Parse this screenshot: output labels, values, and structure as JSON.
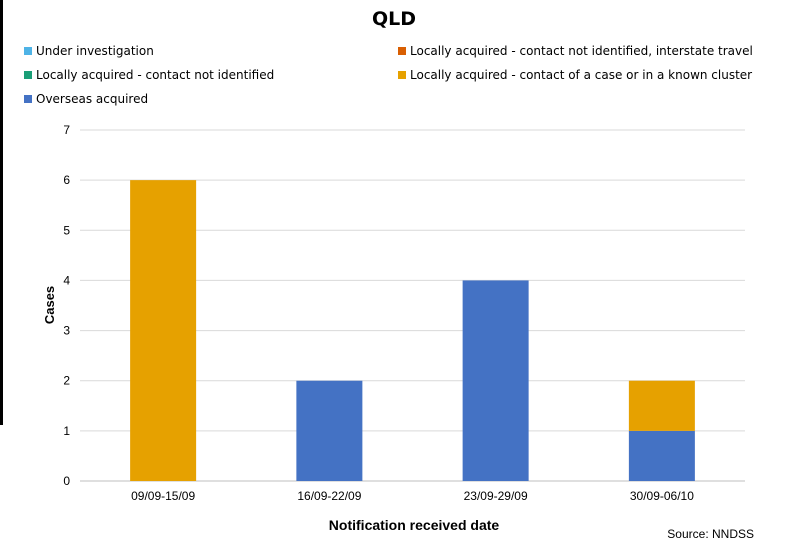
{
  "chart_data": {
    "type": "bar",
    "stacked": true,
    "title": "QLD",
    "xlabel": "Notification received date",
    "ylabel": "Cases",
    "ylim": [
      0,
      7
    ],
    "yticks": [
      0,
      1,
      2,
      3,
      4,
      5,
      6,
      7
    ],
    "grid": true,
    "legend_position": "top",
    "categories": [
      "09/09-15/09",
      "16/09-22/09",
      "23/09-29/09",
      "30/09-06/10"
    ],
    "series": [
      {
        "name": "Overseas acquired",
        "color": "#4472c4",
        "values": [
          0,
          2,
          4,
          1
        ]
      },
      {
        "name": "Locally acquired - contact of a case or in a known cluster",
        "color": "#e6a100",
        "values": [
          6,
          0,
          0,
          1
        ]
      },
      {
        "name": "Locally acquired - contact not identified",
        "color": "#1a9e77",
        "values": [
          0,
          0,
          0,
          0
        ]
      },
      {
        "name": "Locally acquired - contact not identified, interstate travel",
        "color": "#d95f02",
        "values": [
          0,
          0,
          0,
          0
        ]
      },
      {
        "name": "Under investigation",
        "color": "#4eb3e6",
        "values": [
          0,
          0,
          0,
          0
        ]
      }
    ],
    "source": "Source: NNDSS"
  },
  "legend": [
    {
      "label": "Under investigation",
      "color": "#4eb3e6"
    },
    {
      "label": "Locally acquired - contact not identified",
      "color": "#1a9e77"
    },
    {
      "label": "Overseas acquired",
      "color": "#4472c4"
    },
    {
      "label": "Locally acquired - contact not identified, interstate travel",
      "color": "#d95f02"
    },
    {
      "label": "Locally acquired - contact of a case or in a known cluster",
      "color": "#e6a100"
    }
  ]
}
